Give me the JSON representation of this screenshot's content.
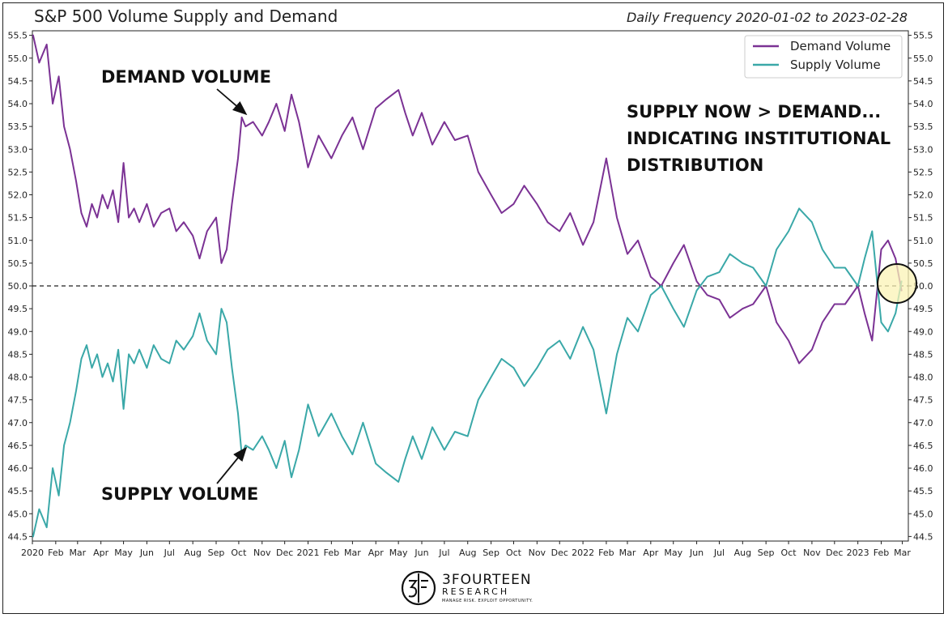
{
  "header": {
    "title": "S&P 500 Volume Supply and Demand",
    "subtitle": "Daily Frequency 2020-01-02 to 2023-02-28"
  },
  "annotations": {
    "demand": "DEMAND VOLUME",
    "supply": "SUPPLY VOLUME",
    "note_line1": "SUPPLY NOW > DEMAND...",
    "note_line2": "INDICATING INSTITUTIONAL",
    "note_line3": "DISTRIBUTION"
  },
  "logo": {
    "brand": "3FOURTEEN",
    "sub": "RESEARCH",
    "tagline": "MANAGE RISK. EXPLOIT OPPORTUNITY."
  },
  "colors": {
    "demand": "#7b3294",
    "supply": "#3aa8a8",
    "reference": "#222222",
    "highlight": "#fbf3b6"
  },
  "chart_data": {
    "type": "line",
    "title": "S&P 500 Volume Supply and Demand",
    "xlabel": "",
    "ylabel": "",
    "ylim": [
      44.4,
      55.6
    ],
    "yticks": [
      44.5,
      45.0,
      45.5,
      46.0,
      46.5,
      47.0,
      47.5,
      48.0,
      48.5,
      49.0,
      49.5,
      50.0,
      50.5,
      51.0,
      51.5,
      52.0,
      52.5,
      53.0,
      53.5,
      54.0,
      54.5,
      55.0,
      55.5
    ],
    "ytick_labels": [
      "44.5",
      "45.0",
      "45.5",
      "46.0",
      "46.5",
      "47.0",
      "47.5",
      "48.0",
      "48.5",
      "49.0",
      "49.5",
      "50.0",
      "50.5",
      "51.0",
      "51.5",
      "52.0",
      "52.5",
      "53.0",
      "53.5",
      "54.0",
      "54.5",
      "55.0",
      "55.5"
    ],
    "xlim": [
      "2020-01-01",
      "2023-03-09"
    ],
    "xticks": [
      "2020-01-01",
      "2020-02-01",
      "2020-03-01",
      "2020-04-01",
      "2020-05-01",
      "2020-06-01",
      "2020-07-01",
      "2020-08-01",
      "2020-09-01",
      "2020-10-01",
      "2020-11-01",
      "2020-12-01",
      "2021-01-01",
      "2021-02-01",
      "2021-03-01",
      "2021-04-01",
      "2021-05-01",
      "2021-06-01",
      "2021-07-01",
      "2021-08-01",
      "2021-09-01",
      "2021-10-01",
      "2021-11-01",
      "2021-12-01",
      "2022-01-01",
      "2022-02-01",
      "2022-03-01",
      "2022-04-01",
      "2022-05-01",
      "2022-06-01",
      "2022-07-01",
      "2022-08-01",
      "2022-09-01",
      "2022-10-01",
      "2022-11-01",
      "2022-12-01",
      "2023-01-01",
      "2023-02-01",
      "2023-03-01"
    ],
    "xtick_labels": [
      "2020",
      "Feb",
      "Mar",
      "Apr",
      "May",
      "Jun",
      "Jul",
      "Aug",
      "Sep",
      "Oct",
      "Nov",
      "Dec",
      "2021",
      "Feb",
      "Mar",
      "Apr",
      "May",
      "Jun",
      "Jul",
      "Aug",
      "Sep",
      "Oct",
      "Nov",
      "Dec",
      "2022",
      "Feb",
      "Mar",
      "Apr",
      "May",
      "Jun",
      "Jul",
      "Aug",
      "Sep",
      "Oct",
      "Nov",
      "Dec",
      "2023",
      "Feb",
      "Mar"
    ],
    "reference_line": 50.0,
    "legend_position": "top-right",
    "grid": false,
    "series": [
      {
        "name": "Demand Volume",
        "color": "#7b3294",
        "x": [
          "2020-01-02",
          "2020-01-10",
          "2020-01-20",
          "2020-01-28",
          "2020-02-05",
          "2020-02-12",
          "2020-02-20",
          "2020-02-28",
          "2020-03-06",
          "2020-03-13",
          "2020-03-20",
          "2020-03-27",
          "2020-04-03",
          "2020-04-10",
          "2020-04-17",
          "2020-04-24",
          "2020-05-01",
          "2020-05-08",
          "2020-05-15",
          "2020-05-22",
          "2020-06-01",
          "2020-06-10",
          "2020-06-20",
          "2020-07-01",
          "2020-07-10",
          "2020-07-20",
          "2020-08-01",
          "2020-08-10",
          "2020-08-20",
          "2020-09-01",
          "2020-09-08",
          "2020-09-15",
          "2020-09-22",
          "2020-09-30",
          "2020-10-05",
          "2020-10-10",
          "2020-10-20",
          "2020-11-01",
          "2020-11-10",
          "2020-11-20",
          "2020-12-01",
          "2020-12-10",
          "2020-12-20",
          "2021-01-01",
          "2021-01-15",
          "2021-02-01",
          "2021-02-15",
          "2021-03-01",
          "2021-03-15",
          "2021-04-01",
          "2021-04-15",
          "2021-05-01",
          "2021-05-10",
          "2021-05-20",
          "2021-06-01",
          "2021-06-15",
          "2021-07-01",
          "2021-07-15",
          "2021-08-01",
          "2021-08-15",
          "2021-09-01",
          "2021-09-15",
          "2021-10-01",
          "2021-10-15",
          "2021-11-01",
          "2021-11-15",
          "2021-12-01",
          "2021-12-15",
          "2022-01-01",
          "2022-01-15",
          "2022-02-01",
          "2022-02-15",
          "2022-03-01",
          "2022-03-15",
          "2022-04-01",
          "2022-04-15",
          "2022-05-01",
          "2022-05-15",
          "2022-06-01",
          "2022-06-15",
          "2022-07-01",
          "2022-07-15",
          "2022-08-01",
          "2022-08-15",
          "2022-09-01",
          "2022-09-15",
          "2022-10-01",
          "2022-10-15",
          "2022-11-01",
          "2022-11-15",
          "2022-12-01",
          "2022-12-15",
          "2023-01-01",
          "2023-01-10",
          "2023-01-20",
          "2023-02-01",
          "2023-02-10",
          "2023-02-20",
          "2023-02-28"
        ],
        "values": [
          55.5,
          54.9,
          55.3,
          54.0,
          54.6,
          53.5,
          53.0,
          52.3,
          51.6,
          51.3,
          51.8,
          51.5,
          52.0,
          51.7,
          52.1,
          51.4,
          52.7,
          51.5,
          51.7,
          51.4,
          51.8,
          51.3,
          51.6,
          51.7,
          51.2,
          51.4,
          51.1,
          50.6,
          51.2,
          51.5,
          50.5,
          50.8,
          51.8,
          52.8,
          53.7,
          53.5,
          53.6,
          53.3,
          53.6,
          54.0,
          53.4,
          54.2,
          53.6,
          52.6,
          53.3,
          52.8,
          53.3,
          53.7,
          53.0,
          53.9,
          54.1,
          54.3,
          53.8,
          53.3,
          53.8,
          53.1,
          53.6,
          53.2,
          53.3,
          52.5,
          52.0,
          51.6,
          51.8,
          52.2,
          51.8,
          51.4,
          51.2,
          51.6,
          50.9,
          51.4,
          52.8,
          51.5,
          50.7,
          51.0,
          50.2,
          50.0,
          50.5,
          50.9,
          50.1,
          49.8,
          49.7,
          49.3,
          49.5,
          49.6,
          50.0,
          49.2,
          48.8,
          48.3,
          48.6,
          49.2,
          49.6,
          49.6,
          50.0,
          49.4,
          48.8,
          50.8,
          51.0,
          50.6,
          49.9
        ]
      },
      {
        "name": "Supply Volume",
        "color": "#3aa8a8",
        "x": [
          "2020-01-02",
          "2020-01-10",
          "2020-01-20",
          "2020-01-28",
          "2020-02-05",
          "2020-02-12",
          "2020-02-20",
          "2020-02-28",
          "2020-03-06",
          "2020-03-13",
          "2020-03-20",
          "2020-03-27",
          "2020-04-03",
          "2020-04-10",
          "2020-04-17",
          "2020-04-24",
          "2020-05-01",
          "2020-05-08",
          "2020-05-15",
          "2020-05-22",
          "2020-06-01",
          "2020-06-10",
          "2020-06-20",
          "2020-07-01",
          "2020-07-10",
          "2020-07-20",
          "2020-08-01",
          "2020-08-10",
          "2020-08-20",
          "2020-09-01",
          "2020-09-08",
          "2020-09-15",
          "2020-09-22",
          "2020-09-30",
          "2020-10-05",
          "2020-10-10",
          "2020-10-20",
          "2020-11-01",
          "2020-11-10",
          "2020-11-20",
          "2020-12-01",
          "2020-12-10",
          "2020-12-20",
          "2021-01-01",
          "2021-01-15",
          "2021-02-01",
          "2021-02-15",
          "2021-03-01",
          "2021-03-15",
          "2021-04-01",
          "2021-04-15",
          "2021-05-01",
          "2021-05-10",
          "2021-05-20",
          "2021-06-01",
          "2021-06-15",
          "2021-07-01",
          "2021-07-15",
          "2021-08-01",
          "2021-08-15",
          "2021-09-01",
          "2021-09-15",
          "2021-10-01",
          "2021-10-15",
          "2021-11-01",
          "2021-11-15",
          "2021-12-01",
          "2021-12-15",
          "2022-01-01",
          "2022-01-15",
          "2022-02-01",
          "2022-02-15",
          "2022-03-01",
          "2022-03-15",
          "2022-04-01",
          "2022-04-15",
          "2022-05-01",
          "2022-05-15",
          "2022-06-01",
          "2022-06-15",
          "2022-07-01",
          "2022-07-15",
          "2022-08-01",
          "2022-08-15",
          "2022-09-01",
          "2022-09-15",
          "2022-10-01",
          "2022-10-15",
          "2022-11-01",
          "2022-11-15",
          "2022-12-01",
          "2022-12-15",
          "2023-01-01",
          "2023-01-10",
          "2023-01-20",
          "2023-02-01",
          "2023-02-10",
          "2023-02-20",
          "2023-02-28"
        ],
        "values": [
          44.5,
          45.1,
          44.7,
          46.0,
          45.4,
          46.5,
          47.0,
          47.7,
          48.4,
          48.7,
          48.2,
          48.5,
          48.0,
          48.3,
          47.9,
          48.6,
          47.3,
          48.5,
          48.3,
          48.6,
          48.2,
          48.7,
          48.4,
          48.3,
          48.8,
          48.6,
          48.9,
          49.4,
          48.8,
          48.5,
          49.5,
          49.2,
          48.2,
          47.2,
          46.3,
          46.5,
          46.4,
          46.7,
          46.4,
          46.0,
          46.6,
          45.8,
          46.4,
          47.4,
          46.7,
          47.2,
          46.7,
          46.3,
          47.0,
          46.1,
          45.9,
          45.7,
          46.2,
          46.7,
          46.2,
          46.9,
          46.4,
          46.8,
          46.7,
          47.5,
          48.0,
          48.4,
          48.2,
          47.8,
          48.2,
          48.6,
          48.8,
          48.4,
          49.1,
          48.6,
          47.2,
          48.5,
          49.3,
          49.0,
          49.8,
          50.0,
          49.5,
          49.1,
          49.9,
          50.2,
          50.3,
          50.7,
          50.5,
          50.4,
          50.0,
          50.8,
          51.2,
          51.7,
          51.4,
          50.8,
          50.4,
          50.4,
          50.0,
          50.6,
          51.2,
          49.2,
          49.0,
          49.4,
          50.1
        ]
      }
    ]
  }
}
